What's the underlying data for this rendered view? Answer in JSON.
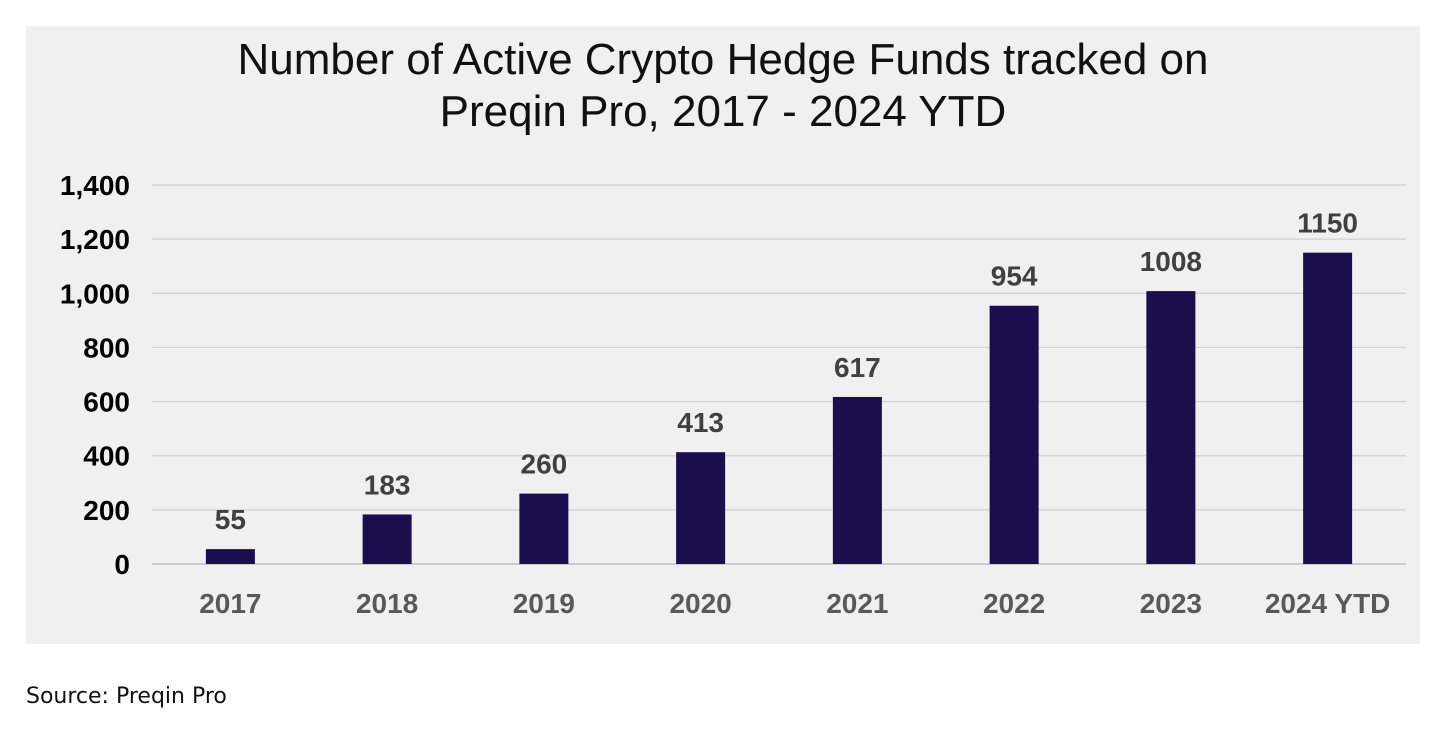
{
  "chart_data": {
    "type": "bar",
    "title_lines": [
      "Number of Active Crypto Hedge Funds tracked on",
      "Preqin Pro, 2017 - 2024 YTD"
    ],
    "categories": [
      "2017",
      "2018",
      "2019",
      "2020",
      "2021",
      "2022",
      "2023",
      "2024 YTD"
    ],
    "values": [
      55,
      183,
      260,
      413,
      617,
      954,
      1008,
      1150
    ],
    "data_labels": [
      "55",
      "183",
      "260",
      "413",
      "617",
      "954",
      "1008",
      "1150"
    ],
    "ylim": [
      0,
      1400
    ],
    "yticks": [
      0,
      200,
      400,
      600,
      800,
      1000,
      1200,
      1400
    ],
    "ytick_labels": [
      "0",
      "200",
      "400",
      "600",
      "800",
      "1,000",
      "1,200",
      "1,400"
    ],
    "xlabel": "",
    "ylabel": "",
    "grid": true,
    "legend": "none",
    "colors": {
      "bar": "#1a0e4e",
      "grid": "#d0d0d0",
      "axis": "#bfbfbf",
      "tick_text": "#000000",
      "category_text": "#595959",
      "data_label_text": "#404040",
      "panel_background": "#f0f0f0"
    }
  },
  "source": "Source: Preqin Pro"
}
